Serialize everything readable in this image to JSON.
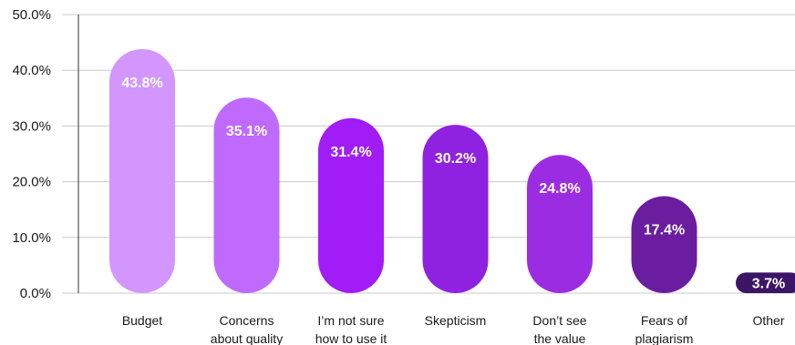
{
  "chart_data": {
    "type": "bar",
    "categories": [
      [
        "Budget"
      ],
      [
        "Concerns",
        "about quality"
      ],
      [
        "I’m not sure",
        "how to use it"
      ],
      [
        "Skepticism"
      ],
      [
        "Don’t see",
        "the value"
      ],
      [
        "Fears of",
        "plagiarism"
      ],
      [
        "Other"
      ]
    ],
    "values": [
      43.8,
      35.1,
      31.4,
      30.2,
      24.8,
      17.4,
      3.7
    ],
    "data_labels": [
      "43.8%",
      "35.1%",
      "31.4%",
      "30.2%",
      "24.8%",
      "17.4%",
      "3.7%"
    ],
    "bar_colors": [
      "#d396fd",
      "#c06afc",
      "#a11cf6",
      "#8f22e0",
      "#9b2ce2",
      "#6a1d9f",
      "#3d1566"
    ],
    "y_ticks": [
      "0.0%",
      "10.0%",
      "20.0%",
      "30.0%",
      "40.0%",
      "50.0%"
    ],
    "ylim": [
      0,
      50
    ],
    "grid": true,
    "title": "",
    "xlabel": "",
    "ylabel": ""
  }
}
